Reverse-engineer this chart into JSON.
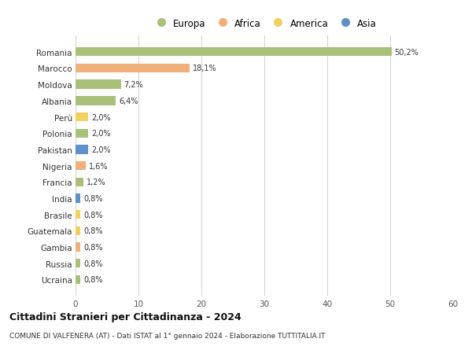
{
  "countries": [
    "Romania",
    "Marocco",
    "Moldova",
    "Albania",
    "Perù",
    "Polonia",
    "Pakistan",
    "Nigeria",
    "Francia",
    "India",
    "Brasile",
    "Guatemala",
    "Gambia",
    "Russia",
    "Ucraina"
  ],
  "values": [
    50.2,
    18.1,
    7.2,
    6.4,
    2.0,
    2.0,
    2.0,
    1.6,
    1.2,
    0.8,
    0.8,
    0.8,
    0.8,
    0.8,
    0.8
  ],
  "labels": [
    "50,2%",
    "18,1%",
    "7,2%",
    "6,4%",
    "2,0%",
    "2,0%",
    "2,0%",
    "1,6%",
    "1,2%",
    "0,8%",
    "0,8%",
    "0,8%",
    "0,8%",
    "0,8%",
    "0,8%"
  ],
  "continents": [
    "Europa",
    "Africa",
    "Europa",
    "Europa",
    "America",
    "Europa",
    "Asia",
    "Africa",
    "Europa",
    "Asia",
    "America",
    "America",
    "Africa",
    "Europa",
    "Europa"
  ],
  "colors": {
    "Europa": "#a8c07a",
    "Africa": "#f0b07a",
    "America": "#f0d060",
    "Asia": "#6090c8"
  },
  "title": "Cittadini Stranieri per Cittadinanza - 2024",
  "subtitle": "COMUNE DI VALFENERA (AT) - Dati ISTAT al 1° gennaio 2024 - Elaborazione TUTTITALIA.IT",
  "xlim": [
    0,
    60
  ],
  "xticks": [
    0,
    10,
    20,
    30,
    40,
    50,
    60
  ],
  "background_color": "#ffffff",
  "grid_color": "#d0d0d0",
  "bar_height": 0.55,
  "legend_order": [
    "Europa",
    "Africa",
    "America",
    "Asia"
  ]
}
